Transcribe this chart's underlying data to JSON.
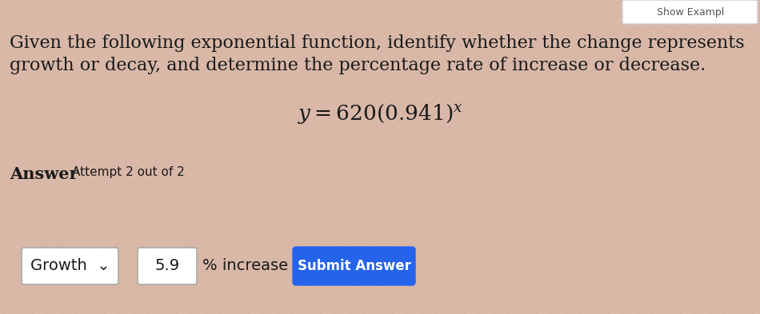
{
  "bg_color": "#d9b8a8",
  "stripe_color1": "#d4b5a5",
  "stripe_color2": "#e0c0b0",
  "title_line1": "Given the following exponential function, identify whether the change represents",
  "title_line2": "growth or decay, and determine the percentage rate of increase or decrease.",
  "equation": "$y = 620(0.941)^x$",
  "answer_label": "Answer",
  "attempt_text": "Attempt 2 out of 2",
  "dropdown_text": "Growth  ⌄",
  "input_value": "5.9",
  "percent_text": "% increase",
  "button_text": "Submit Answer",
  "button_color": "#2563eb",
  "button_text_color": "#ffffff",
  "text_color": "#1a1a1a",
  "box_border_color": "#aaaaaa",
  "title_fontsize": 16,
  "equation_fontsize": 19,
  "answer_label_fontsize": 15,
  "attempt_fontsize": 11,
  "ui_fontsize": 14,
  "button_fontsize": 12,
  "corner_text": "Show Exampl",
  "corner_text_color": "#555555"
}
